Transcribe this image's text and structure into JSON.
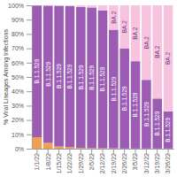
{
  "chart_data": {
    "type": "bar",
    "stacked": true,
    "y_label": "% Viral Lineages Among Infections",
    "categories": [
      "1/1/22",
      "1/8/22",
      "1/15/22",
      "1/22/22",
      "1/29/22",
      "2/5/22",
      "2/12/22",
      "2/19/22",
      "2/26/22",
      "3/5/22",
      "3/12/22",
      "3/19/22",
      "3/26/22"
    ],
    "series": [
      {
        "color": "#f0a050",
        "values": [
          8,
          4,
          1.5,
          1,
          0.5,
          0.4,
          0.3,
          0.2,
          0.1,
          0.1,
          0.1,
          0.1,
          0.1
        ]
      },
      {
        "name": "B.1.1.529",
        "color": "#9c5cb4",
        "values": [
          91.9,
          95.8,
          98.2,
          98.5,
          98.5,
          98.1,
          96.2,
          82.8,
          69.9,
          60.9,
          47.9,
          34.9,
          25.9
        ]
      },
      {
        "name": "BA.2",
        "color": "#f7c4df",
        "values": [
          0.1,
          0.2,
          0.3,
          0.5,
          1,
          1.5,
          3.5,
          17,
          30,
          39,
          52,
          65,
          74
        ]
      }
    ],
    "ylim": [
      0,
      100
    ],
    "yticks": [
      {
        "value": 0,
        "label": "0%"
      },
      {
        "value": 10,
        "label": "10%"
      },
      {
        "value": 20,
        "label": "20%"
      },
      {
        "value": 30,
        "label": "30%"
      },
      {
        "value": 40,
        "label": "40%"
      },
      {
        "value": 50,
        "label": "50%"
      },
      {
        "value": 60,
        "label": "60%"
      },
      {
        "value": 70,
        "label": "70%"
      },
      {
        "value": 80,
        "label": "80%"
      },
      {
        "value": 90,
        "label": "90%"
      },
      {
        "value": 100,
        "label": "100%"
      }
    ],
    "grid": false
  }
}
